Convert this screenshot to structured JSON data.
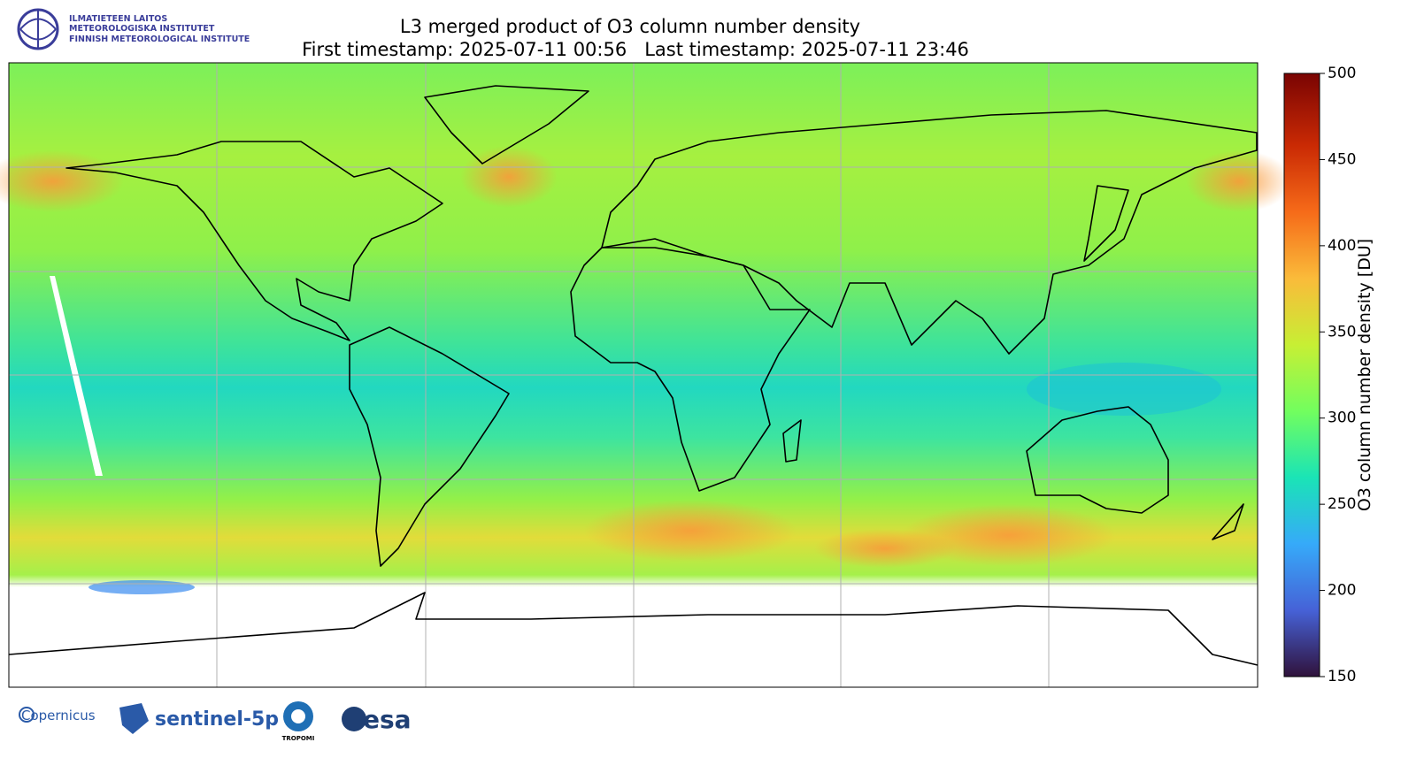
{
  "header": {
    "institute": [
      "ILMATIETEEN LAITOS",
      "METEOROLOGISKA INSTITUTET",
      "FINNISH METEOROLOGICAL INSTITUTE"
    ],
    "title": "L3 merged product of O3 column number density",
    "subtitle": "First timestamp: 2025-07-11 00:56   Last timestamp: 2025-07-11 23:46"
  },
  "colorbar": {
    "label": "O3 column number density [DU]",
    "lim": [
      150,
      500
    ],
    "ticks": [
      150,
      200,
      250,
      300,
      350,
      400,
      450,
      500
    ]
  },
  "footer": {
    "logos": [
      "Copernicus",
      "sentinel-5p",
      "TROPOMI",
      "esa"
    ]
  }
}
